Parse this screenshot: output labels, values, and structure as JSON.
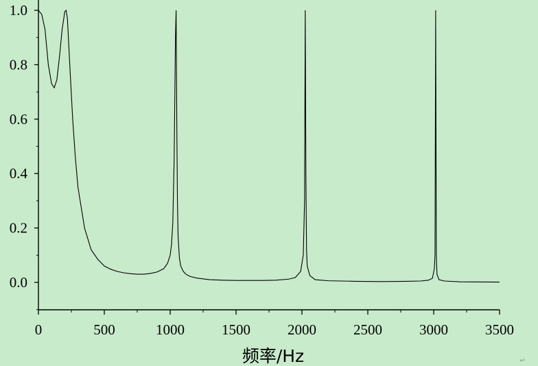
{
  "chart_data": {
    "type": "line",
    "title": "",
    "xlabel": "频率/Hz",
    "ylabel": "",
    "xlim": [
      0,
      3500
    ],
    "ylim": [
      -0.1,
      1.0
    ],
    "xticks": [
      0,
      500,
      1000,
      1500,
      2000,
      2500,
      3000,
      3500
    ],
    "xtick_labels": [
      "0",
      "500",
      "1000",
      "1500",
      "2000",
      "2500",
      "3000",
      "3500"
    ],
    "yticks": [
      0.0,
      0.2,
      0.4,
      0.6,
      0.8,
      1.0
    ],
    "ytick_labels": [
      "0.0",
      "0.2",
      "0.4",
      "0.6",
      "0.8",
      "1.0"
    ],
    "grid": false,
    "line_color": "#000000",
    "background": "#c8ebcb",
    "series": [
      {
        "x": [
          0,
          25,
          50,
          75,
          100,
          120,
          140,
          160,
          180,
          200,
          210,
          220,
          240,
          260,
          280,
          300,
          350,
          400,
          450,
          500,
          550,
          600,
          650,
          700,
          750,
          800,
          850,
          900,
          950,
          980,
          1000,
          1010,
          1020,
          1030,
          1040,
          1045,
          1050,
          1055,
          1060,
          1070,
          1080,
          1100,
          1120,
          1150,
          1200,
          1300,
          1400,
          1500,
          1600,
          1700,
          1800,
          1900,
          1950,
          1990,
          2010,
          2020,
          2025,
          2030,
          2035,
          2040,
          2060,
          2100,
          2200,
          2400,
          2600,
          2800,
          2900,
          2960,
          2990,
          3005,
          3010,
          3015,
          3020,
          3025,
          3040,
          3080,
          3200,
          3500
        ],
        "y": [
          1.0,
          0.985,
          0.93,
          0.8,
          0.73,
          0.715,
          0.745,
          0.83,
          0.93,
          0.995,
          1.0,
          0.97,
          0.78,
          0.6,
          0.46,
          0.35,
          0.2,
          0.12,
          0.085,
          0.06,
          0.048,
          0.04,
          0.035,
          0.032,
          0.03,
          0.03,
          0.033,
          0.038,
          0.05,
          0.07,
          0.1,
          0.14,
          0.22,
          0.45,
          0.9,
          1.0,
          0.6,
          0.3,
          0.17,
          0.09,
          0.06,
          0.04,
          0.03,
          0.022,
          0.016,
          0.01,
          0.008,
          0.007,
          0.007,
          0.007,
          0.008,
          0.012,
          0.018,
          0.04,
          0.1,
          0.3,
          1.0,
          0.4,
          0.12,
          0.06,
          0.025,
          0.01,
          0.006,
          0.004,
          0.003,
          0.004,
          0.005,
          0.008,
          0.015,
          0.05,
          0.1,
          1.0,
          0.1,
          0.03,
          0.01,
          0.005,
          0.002,
          0.001
        ]
      }
    ]
  }
}
